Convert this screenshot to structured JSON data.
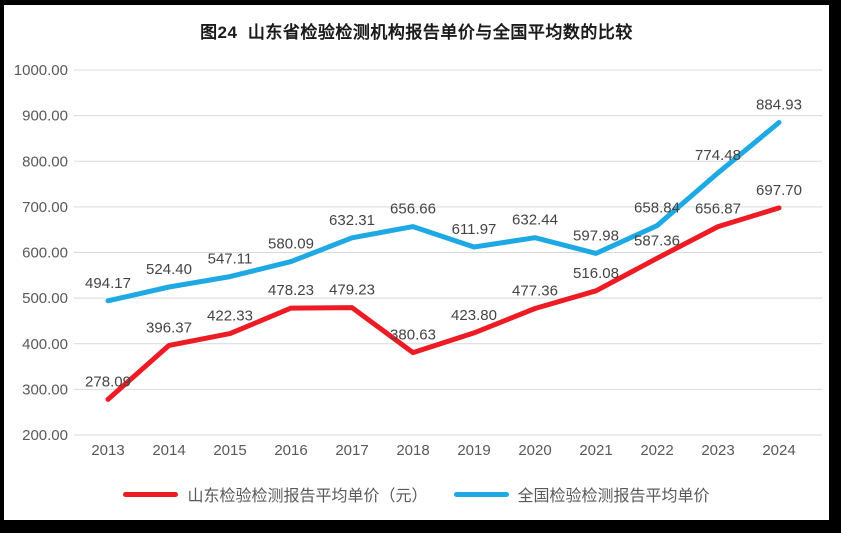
{
  "chart_data": {
    "type": "line",
    "title": "图24  山东省检验检测机构报告单价与全国平均数的比较",
    "categories": [
      "2013",
      "2014",
      "2015",
      "2016",
      "2017",
      "2018",
      "2019",
      "2020",
      "2021",
      "2022",
      "2023",
      "2024"
    ],
    "series": [
      {
        "name": "山东检验检测报告平均单价（元）",
        "color": "#ed1c24",
        "values": [
          278.09,
          396.37,
          422.33,
          478.23,
          479.23,
          380.63,
          423.8,
          477.36,
          516.08,
          587.36,
          656.87,
          697.7
        ]
      },
      {
        "name": "全国检验检测报告平均单价",
        "color": "#1fa9e4",
        "values": [
          494.17,
          524.4,
          547.11,
          580.09,
          632.31,
          656.66,
          611.97,
          632.44,
          597.98,
          658.84,
          774.48,
          884.93
        ]
      }
    ],
    "ylim": [
      200,
      1000
    ],
    "ytick_step": 100,
    "ytick_decimals": 2,
    "data_label_decimals": 2,
    "grid": "horizontal",
    "legend_position": "bottom",
    "data_labels": true
  },
  "style_colors": {
    "gridline": "#d9d9d9",
    "axis_text": "#595959",
    "data_label_text": "#444444",
    "frame_border": "#000000"
  }
}
